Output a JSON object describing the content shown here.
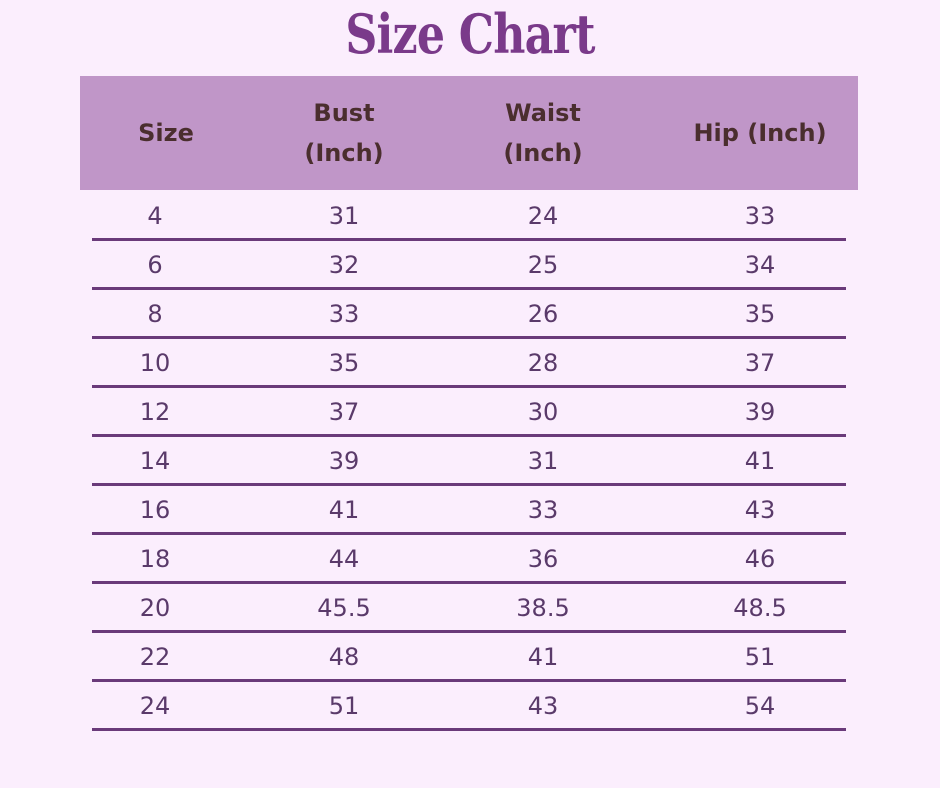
{
  "title": "Size Chart",
  "colors": {
    "background": "#fbeefd",
    "header_fill": "#c096c8",
    "header_text": "#4a2e2e",
    "title": "#7a3a8a",
    "row_text": "#5a3a6a",
    "rule": "#6a3a7a"
  },
  "chart_data": {
    "type": "table",
    "title": "Size Chart",
    "columns": [
      "Size",
      "Bust (Inch)",
      "Waist (Inch)",
      "Hip (Inch)"
    ],
    "rows": [
      [
        "4",
        "31",
        "24",
        "33"
      ],
      [
        "6",
        "32",
        "25",
        "34"
      ],
      [
        "8",
        "33",
        "26",
        "35"
      ],
      [
        "10",
        "35",
        "28",
        "37"
      ],
      [
        "12",
        "37",
        "30",
        "39"
      ],
      [
        "14",
        "39",
        "31",
        "41"
      ],
      [
        "16",
        "41",
        "33",
        "43"
      ],
      [
        "18",
        "44",
        "36",
        "46"
      ],
      [
        "20",
        "45.5",
        "38.5",
        "48.5"
      ],
      [
        "22",
        "48",
        "41",
        "51"
      ],
      [
        "24",
        "51",
        "43",
        "54"
      ]
    ]
  }
}
